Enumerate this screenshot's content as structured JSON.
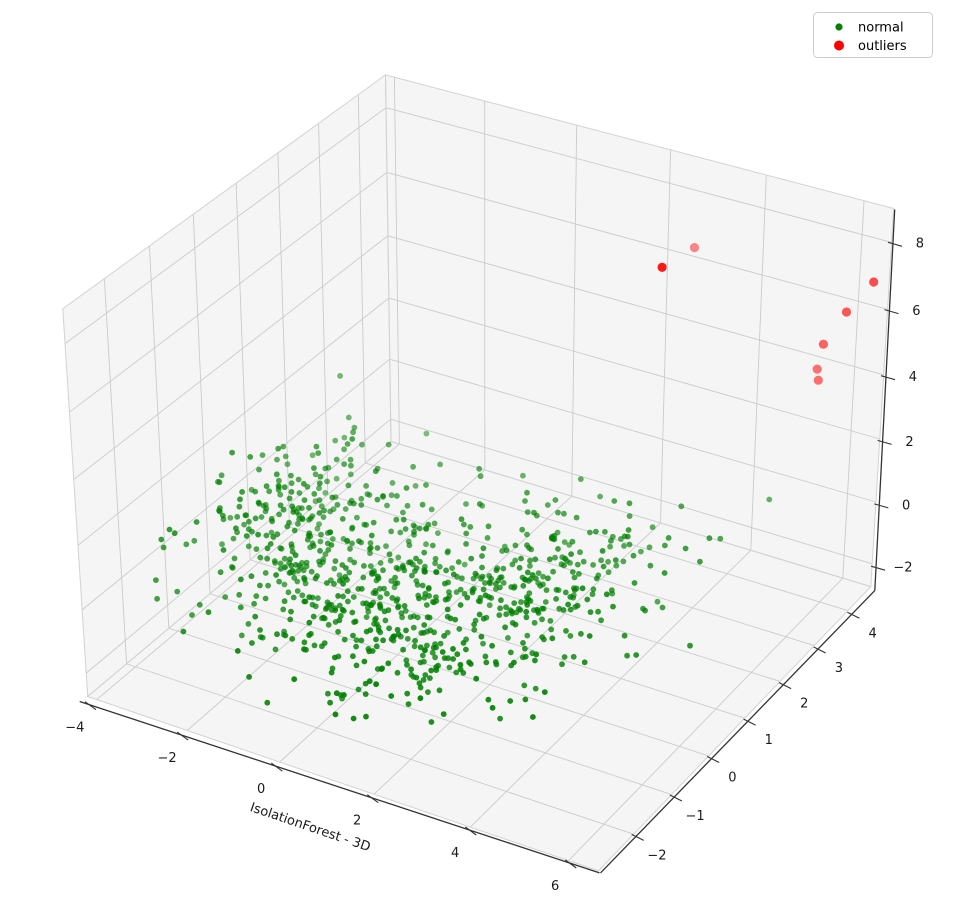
{
  "figure": {
    "background": "#ffffff"
  },
  "chart_data": {
    "type": "scatter",
    "subtype": "scatter3d",
    "title": "",
    "xlabel": "IsolationForest - 3D",
    "ylabel": "",
    "zlabel": "",
    "xlim": [
      -4.2,
      6.6
    ],
    "ylim": [
      -2.9,
      4.7
    ],
    "zlim": [
      -2.75,
      9.0
    ],
    "x_ticks": [
      -4,
      -2,
      0,
      2,
      4,
      6
    ],
    "y_ticks": [
      -2,
      -1,
      0,
      1,
      2,
      3,
      4
    ],
    "z_ticks": [
      -2,
      0,
      2,
      4,
      6,
      8
    ],
    "grid": true,
    "view": {
      "elev": 30,
      "azim": -60,
      "projection": "persp"
    },
    "legend_position": "upper right",
    "legend": [
      {
        "label": "normal",
        "color": "#008000",
        "marker_radius_px": 3.6
      },
      {
        "label": "outliers",
        "color": "#ff0000",
        "marker_radius_px": 5
      }
    ],
    "series": [
      {
        "name": "normal",
        "color": "#008000",
        "marker_radius_px": 2.9,
        "alpha_near": 0.95,
        "alpha_far": 0.5,
        "point_count": 900,
        "seed": 7,
        "clusters": [
          {
            "count": 420,
            "center": [
              0.3,
              -0.4,
              -0.8
            ],
            "sigma": [
              1.35,
              0.95,
              0.6
            ]
          },
          {
            "count": 260,
            "center": [
              -2.2,
              0.3,
              0.3
            ],
            "sigma": [
              1.0,
              0.9,
              0.8
            ]
          },
          {
            "count": 220,
            "center": [
              2.4,
              1.1,
              -0.4
            ],
            "sigma": [
              1.1,
              0.95,
              0.75
            ]
          }
        ],
        "clamp": {
          "x": [
            -4.0,
            6.4
          ],
          "y": [
            -2.75,
            4.45
          ],
          "z": [
            -2.5,
            8.7
          ]
        }
      },
      {
        "name": "outliers",
        "color": "#ff0000",
        "marker_radius_px": 4.6,
        "alpha_near": 0.9,
        "alpha_far": 0.45,
        "points": [
          [
            3.0,
            4.1,
            7.0
          ],
          [
            3.45,
            2.6,
            8.0
          ],
          [
            6.45,
            4.45,
            7.0
          ],
          [
            6.1,
            4.2,
            6.2
          ],
          [
            5.8,
            4.0,
            5.3
          ],
          [
            5.7,
            4.0,
            4.5
          ],
          [
            5.8,
            3.9,
            4.3
          ]
        ]
      }
    ],
    "style": {
      "pane_color": "#f5f5f5",
      "pane_edge_color": "#d2d2d2",
      "grid_color": "#cbcbcb",
      "spine_color": "#333333",
      "tick_label_color": "#1a1a1a",
      "legend_border_color": "#cccccc"
    }
  }
}
